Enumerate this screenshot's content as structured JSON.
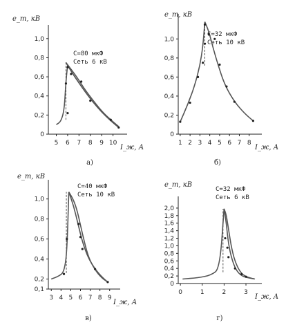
{
  "chart_data": [
    {
      "type": "line",
      "panel_label": "а)",
      "ylabel": "e_m, кВ",
      "xlabel": "I_ж, А",
      "annotation": [
        "С=80 мкФ",
        "Сеть 6 кВ"
      ],
      "xticks": [
        5,
        6,
        7,
        8,
        9,
        10
      ],
      "yticks": [
        0,
        0.2,
        0.4,
        0.6,
        0.8,
        1.0
      ],
      "ytick_labels": [
        "0",
        "0,2",
        "0,4",
        "0,6",
        "0,8",
        "1,0"
      ],
      "xlim": [
        4.3,
        11.0
      ],
      "ylim": [
        0,
        1.1
      ],
      "series": [
        {
          "x": [
            5.0,
            5.4,
            5.7,
            5.85,
            6.0
          ],
          "y": [
            0.1,
            0.13,
            0.25,
            0.55,
            0.73
          ]
        },
        {
          "x": [
            5.85,
            6.3,
            6.8,
            7.5,
            8.2,
            9.0,
            9.8,
            10.5
          ],
          "y": [
            0.75,
            0.68,
            0.6,
            0.47,
            0.36,
            0.24,
            0.15,
            0.08
          ]
        },
        {
          "x": [
            5.85,
            6.3,
            6.8,
            7.5,
            8.2,
            9.0,
            9.8,
            10.5
          ],
          "y": [
            0.75,
            0.66,
            0.57,
            0.45,
            0.34,
            0.23,
            0.14,
            0.07
          ]
        }
      ],
      "points": [
        [
          5.85,
          0.53
        ],
        [
          6.0,
          0.7
        ],
        [
          6.0,
          0.22
        ],
        [
          6.3,
          0.63
        ],
        [
          7.2,
          0.55
        ],
        [
          8.0,
          0.35
        ],
        [
          9.8,
          0.15
        ],
        [
          10.5,
          0.07
        ]
      ],
      "dashed": [
        [
          5.85,
          0.15
        ],
        [
          5.85,
          0.75
        ]
      ]
    },
    {
      "type": "line",
      "panel_label": "б)",
      "ylabel": "e_m, кВ",
      "xlabel": "I_ж, А",
      "annotation": [
        "С=32 мкФ",
        "Сеть 10 кВ"
      ],
      "xticks": [
        1,
        2,
        3,
        4,
        5,
        6,
        7,
        8
      ],
      "yticks": [
        0,
        0.2,
        0.4,
        0.6,
        0.8,
        1.0
      ],
      "ytick_labels": [
        "0",
        "0,2",
        "0,4",
        "0,6",
        "0,8",
        "1,0"
      ],
      "xlim": [
        0.8,
        9.0
      ],
      "ylim": [
        0,
        1.22
      ],
      "series": [
        {
          "x": [
            1.0,
            1.8,
            2.5,
            3.0,
            3.3,
            3.5
          ],
          "y": [
            0.13,
            0.32,
            0.52,
            0.72,
            0.92,
            1.18
          ]
        },
        {
          "x": [
            3.5,
            3.9,
            4.3,
            4.8,
            5.5,
            6.5,
            7.5,
            8.4
          ],
          "y": [
            1.18,
            1.08,
            0.92,
            0.74,
            0.52,
            0.34,
            0.22,
            0.14
          ]
        }
      ],
      "points": [
        [
          1.0,
          0.13
        ],
        [
          2.0,
          0.33
        ],
        [
          2.8,
          0.6
        ],
        [
          3.3,
          0.75
        ],
        [
          3.5,
          0.95
        ],
        [
          3.5,
          1.15
        ],
        [
          3.9,
          1.05
        ],
        [
          4.5,
          1.0
        ],
        [
          5.0,
          0.73
        ],
        [
          5.7,
          0.5
        ],
        [
          6.5,
          0.34
        ],
        [
          8.4,
          0.14
        ]
      ],
      "dashed": [
        [
          3.5,
          0.72
        ],
        [
          3.5,
          1.18
        ]
      ]
    },
    {
      "type": "line",
      "panel_label": "в)",
      "ylabel": "e_m, кВ",
      "xlabel": "I_ж, А",
      "annotation": [
        "С=40 мкФ",
        "Сеть 10 кВ"
      ],
      "xticks": [
        3,
        4,
        5,
        6,
        7,
        8,
        9
      ],
      "yticks": [
        0.1,
        0.2,
        0.4,
        0.6,
        0.8,
        1.0
      ],
      "ytick_labels": [
        "0,1",
        "0,2",
        "0,4",
        "0,6",
        "0,8",
        "1,0"
      ],
      "xlim": [
        2.7,
        9.8
      ],
      "ylim": [
        0.1,
        1.15
      ],
      "series": [
        {
          "x": [
            3.0,
            3.8,
            4.3,
            4.6,
            4.8
          ],
          "y": [
            0.2,
            0.23,
            0.27,
            0.45,
            1.07
          ]
        },
        {
          "x": [
            4.8,
            5.3,
            5.7,
            6.2,
            6.8,
            7.5,
            8.2,
            8.8
          ],
          "y": [
            1.07,
            0.93,
            0.77,
            0.57,
            0.41,
            0.3,
            0.22,
            0.17
          ]
        },
        {
          "x": [
            4.8,
            5.3,
            5.7,
            6.2,
            6.8,
            7.5,
            8.2,
            8.8
          ],
          "y": [
            1.07,
            0.99,
            0.87,
            0.65,
            0.42,
            0.29,
            0.21,
            0.17
          ]
        }
      ],
      "points": [
        [
          4.3,
          0.25
        ],
        [
          4.6,
          0.6
        ],
        [
          5.8,
          0.75
        ],
        [
          6.0,
          0.62
        ],
        [
          6.2,
          0.5
        ],
        [
          7.5,
          0.3
        ],
        [
          8.8,
          0.17
        ]
      ],
      "dashed": [
        [
          4.55,
          0.26
        ],
        [
          4.55,
          1.07
        ]
      ]
    },
    {
      "type": "line",
      "panel_label": "г)",
      "ylabel": "e_m, кВ",
      "xlabel": "I_ж, А",
      "annotation": [
        "С=32 мкФ",
        "Сеть 6 кВ"
      ],
      "xticks": [
        0,
        1,
        2,
        3
      ],
      "yticks": [
        0,
        0.2,
        0.4,
        0.6,
        0.8,
        1.0,
        1.2,
        1.4,
        1.6,
        1.8,
        2.0
      ],
      "ytick_labels": [
        "0",
        "0,2",
        "0,4",
        "0,6",
        "0,8",
        "1,0",
        "1,2",
        "1,4",
        "1,6",
        "1,8",
        "2,0"
      ],
      "xlim": [
        -0.1,
        3.6
      ],
      "ylim": [
        0,
        2.2
      ],
      "series": [
        {
          "x": [
            0.1,
            0.8,
            1.4,
            1.8,
            2.0
          ],
          "y": [
            0.12,
            0.15,
            0.22,
            0.4,
            1.98
          ]
        },
        {
          "x": [
            2.0,
            2.1,
            2.2,
            2.35,
            2.55,
            2.8,
            3.1,
            3.4
          ],
          "y": [
            1.98,
            1.6,
            1.05,
            0.65,
            0.35,
            0.2,
            0.15,
            0.12
          ]
        },
        {
          "x": [
            2.0,
            2.1,
            2.2,
            2.35,
            2.55,
            2.8,
            3.1,
            3.4
          ],
          "y": [
            1.98,
            1.82,
            1.45,
            0.9,
            0.5,
            0.25,
            0.16,
            0.12
          ]
        }
      ],
      "points": [
        [
          2.05,
          1.2
        ],
        [
          2.15,
          0.95
        ],
        [
          2.2,
          0.7
        ],
        [
          2.5,
          0.4
        ],
        [
          2.8,
          0.25
        ],
        [
          3.0,
          0.18
        ]
      ],
      "dashed": [
        [
          1.95,
          0.3
        ],
        [
          1.95,
          1.98
        ]
      ]
    }
  ]
}
